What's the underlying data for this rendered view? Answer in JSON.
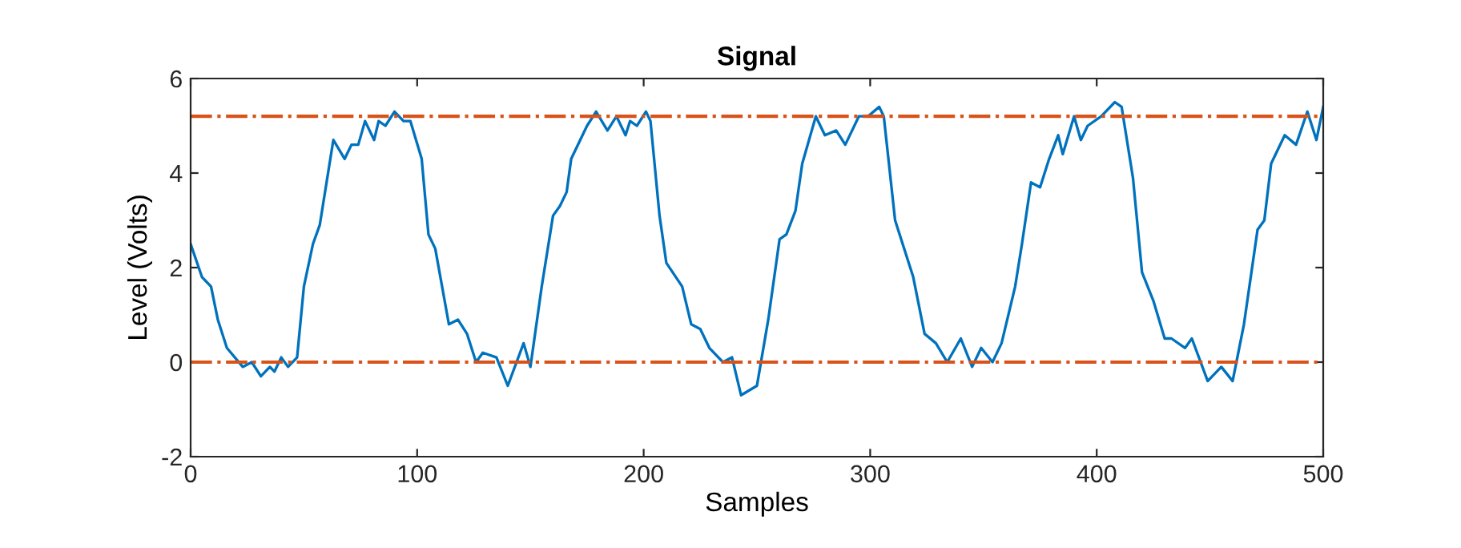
{
  "chart_data": {
    "type": "line",
    "title": "Signal",
    "xlabel": "Samples",
    "ylabel": "Level (Volts)",
    "xlim": [
      0,
      500
    ],
    "ylim": [
      -2,
      6
    ],
    "xticks": [
      0,
      100,
      200,
      300,
      400,
      500
    ],
    "yticks": [
      -2,
      0,
      2,
      4,
      6
    ],
    "grid": false,
    "legend": false,
    "marker": "none",
    "line_style": "solid",
    "ref_lines": [
      {
        "axis": "y",
        "value": 5.2,
        "color": "#d95319",
        "line_style": "dashdot"
      },
      {
        "axis": "y",
        "value": 0,
        "color": "#d95319",
        "line_style": "dashdot"
      }
    ],
    "series": [
      {
        "color": "#0072bd",
        "x": [
          0,
          5,
          9,
          12,
          16,
          23,
          27,
          31,
          35,
          37,
          40,
          43,
          47,
          50,
          54,
          57,
          63,
          68,
          71,
          74,
          77,
          81,
          83,
          86,
          90,
          94,
          97,
          102,
          105,
          108,
          114,
          118,
          122,
          126,
          129,
          135,
          140,
          147,
          150,
          155,
          160,
          163,
          166,
          168,
          173,
          175,
          179,
          184,
          188,
          192,
          194,
          197,
          201,
          203,
          207,
          210,
          217,
          221,
          225,
          229,
          235,
          239,
          243,
          250,
          255,
          260,
          263,
          267,
          270,
          276,
          280,
          285,
          289,
          295,
          299,
          304,
          306,
          311,
          319,
          324,
          329,
          334,
          340,
          345,
          349,
          354,
          358,
          364,
          367,
          371,
          375,
          379,
          383,
          385,
          390,
          393,
          396,
          402,
          408,
          411,
          416,
          420,
          425,
          430,
          433,
          439,
          442,
          449,
          455,
          460,
          465,
          471,
          474,
          477,
          483,
          488,
          493,
          497,
          500
        ],
        "values": [
          2.5,
          1.8,
          1.6,
          0.9,
          0.3,
          -0.1,
          0.0,
          -0.3,
          -0.1,
          -0.2,
          0.1,
          -0.1,
          0.1,
          1.6,
          2.5,
          2.9,
          4.7,
          4.3,
          4.6,
          4.6,
          5.1,
          4.7,
          5.1,
          5.0,
          5.3,
          5.1,
          5.1,
          4.3,
          2.7,
          2.4,
          0.8,
          0.9,
          0.6,
          0.0,
          0.2,
          0.1,
          -0.5,
          0.4,
          -0.1,
          1.6,
          3.1,
          3.3,
          3.6,
          4.3,
          4.8,
          5.0,
          5.3,
          4.9,
          5.2,
          4.8,
          5.1,
          5.0,
          5.3,
          5.1,
          3.1,
          2.1,
          1.6,
          0.8,
          0.7,
          0.3,
          0.0,
          0.1,
          -0.7,
          -0.5,
          0.9,
          2.6,
          2.7,
          3.2,
          4.2,
          5.2,
          4.8,
          4.9,
          4.6,
          5.2,
          5.2,
          5.4,
          5.2,
          3.0,
          1.8,
          0.6,
          0.4,
          0.0,
          0.5,
          -0.1,
          0.3,
          0.0,
          0.4,
          1.6,
          2.5,
          3.8,
          3.7,
          4.3,
          4.8,
          4.4,
          5.2,
          4.7,
          5.0,
          5.2,
          5.5,
          5.4,
          3.9,
          1.9,
          1.3,
          0.5,
          0.5,
          0.3,
          0.5,
          -0.4,
          -0.1,
          -0.4,
          0.8,
          2.8,
          3.0,
          4.2,
          4.8,
          4.6,
          5.3,
          4.7,
          5.4
        ]
      }
    ]
  }
}
